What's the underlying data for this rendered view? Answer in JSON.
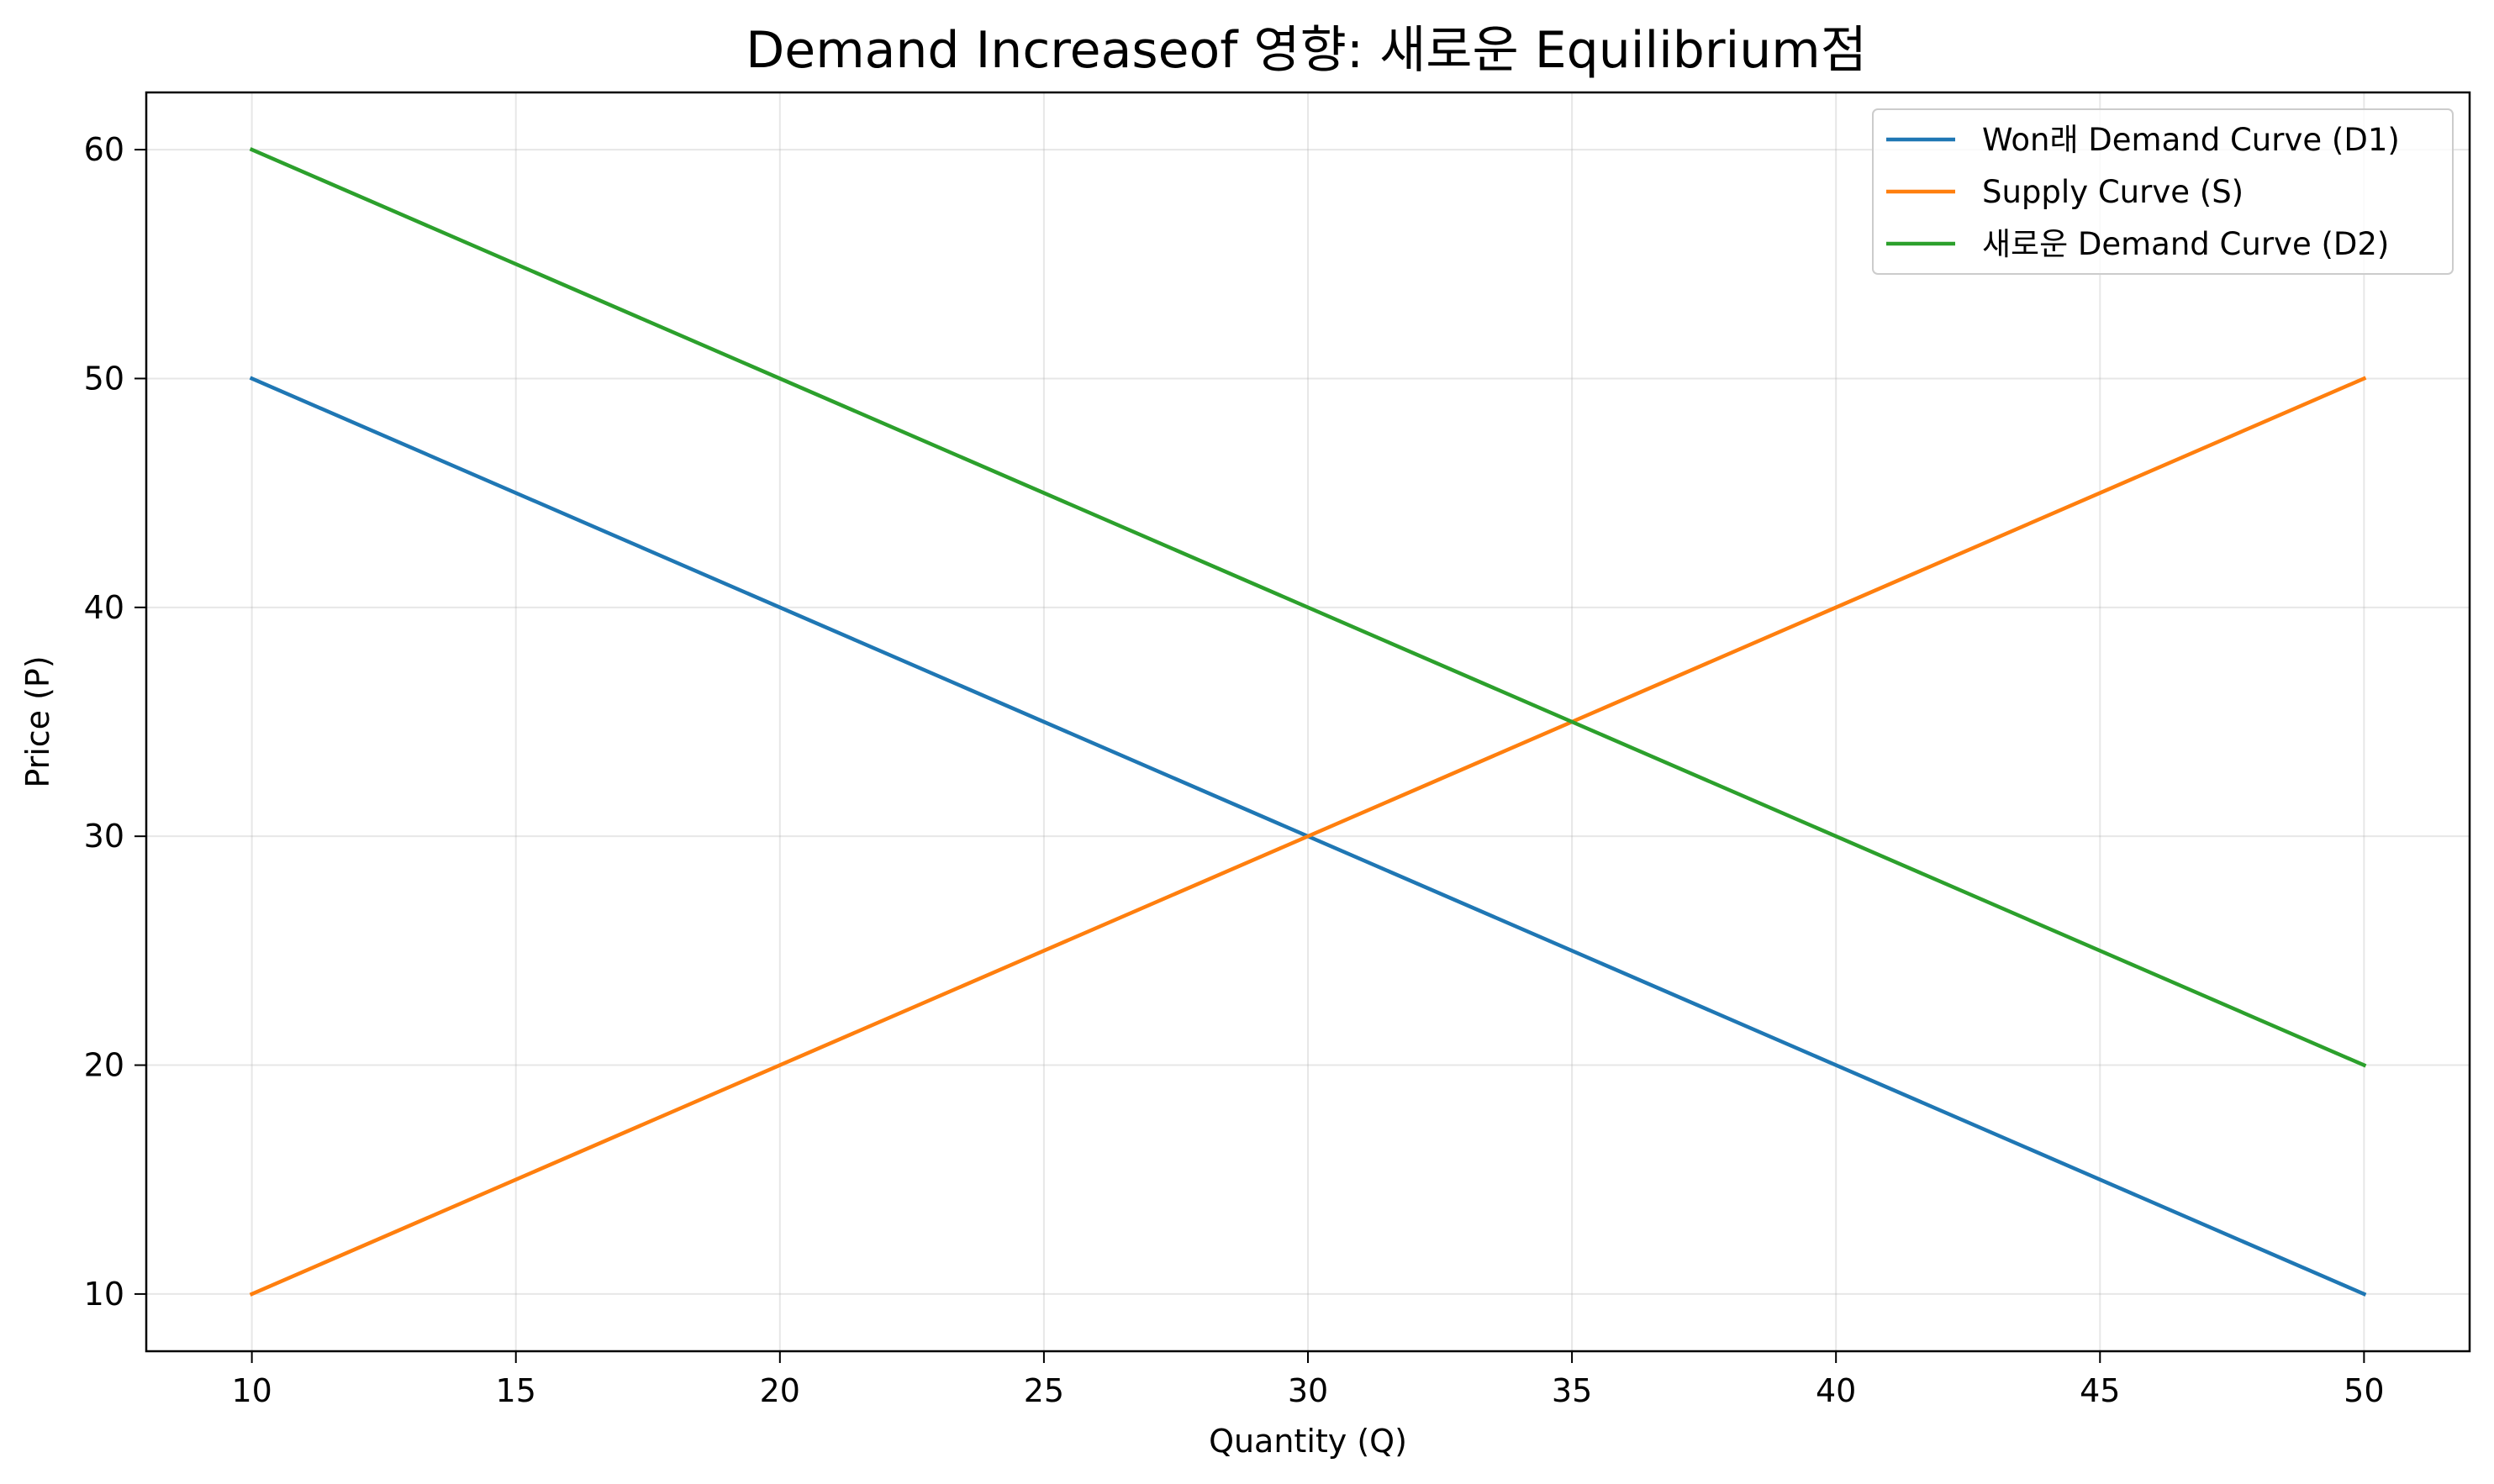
{
  "chart_data": {
    "type": "line",
    "title": "Demand Increaseof 영향: 새로운 Equilibrium점",
    "xlabel": "Quantity (Q)",
    "ylabel": "Price (P)",
    "xlim": [
      8,
      52
    ],
    "ylim": [
      7.5,
      62.5
    ],
    "x_ticks": [
      10,
      15,
      20,
      25,
      30,
      35,
      40,
      45,
      50
    ],
    "y_ticks": [
      10,
      20,
      30,
      40,
      50,
      60
    ],
    "grid": true,
    "legend_position": "top-right",
    "series": [
      {
        "name": "Won래 Demand Curve (D1)",
        "color": "#1f77b4",
        "x": [
          10,
          50
        ],
        "y": [
          50,
          10
        ]
      },
      {
        "name": "Supply Curve (S)",
        "color": "#ff7f0e",
        "x": [
          10,
          50
        ],
        "y": [
          10,
          50
        ]
      },
      {
        "name": "새로운 Demand Curve (D2)",
        "color": "#2ca02c",
        "x": [
          10,
          50
        ],
        "y": [
          60,
          20
        ]
      }
    ]
  }
}
